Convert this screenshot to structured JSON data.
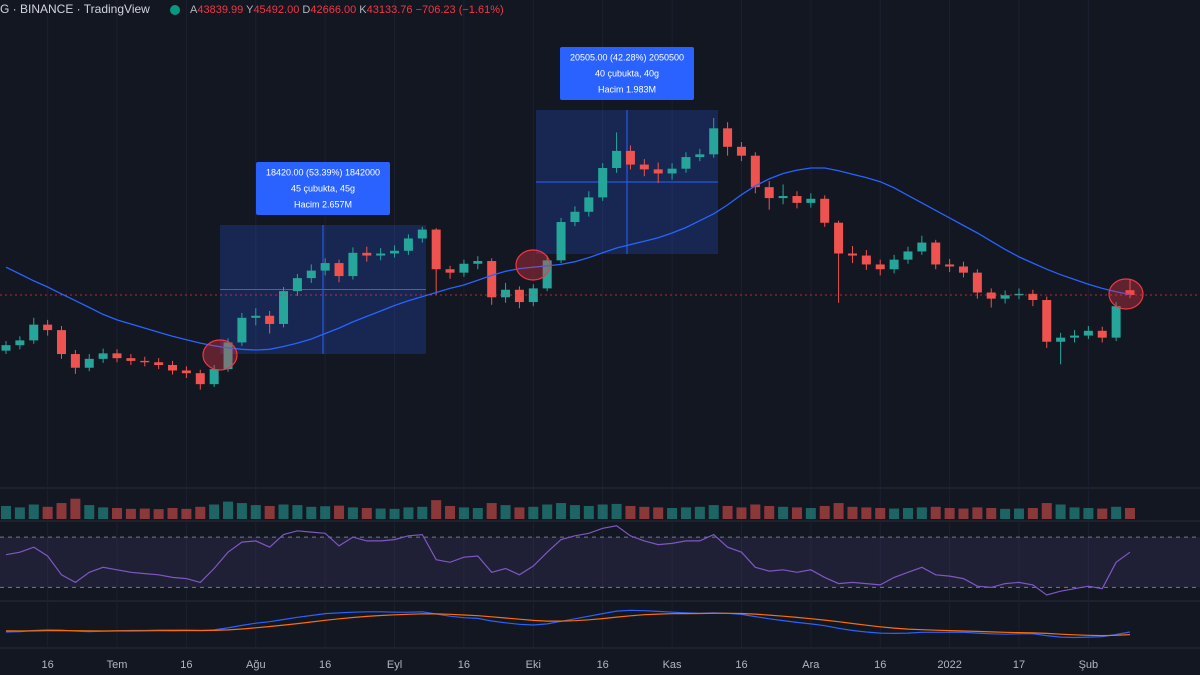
{
  "header": {
    "title": "G · BINANCE · TradingView",
    "ohlc": [
      {
        "label": "A",
        "value": "43839.99"
      },
      {
        "label": "Y",
        "value": "45492.00"
      },
      {
        "label": "D",
        "value": "42666.00"
      },
      {
        "label": "K",
        "value": "43133.76"
      }
    ],
    "change": "−706.23 (−1.61%)"
  },
  "chart_data": {
    "type": "candlestick",
    "categories": [
      null,
      null,
      null,
      "16",
      null,
      null,
      null,
      null,
      "Tem",
      null,
      null,
      null,
      null,
      "16",
      null,
      null,
      null,
      null,
      "Ağu",
      null,
      null,
      null,
      null,
      "16",
      null,
      null,
      null,
      null,
      "Eyl",
      null,
      null,
      null,
      null,
      "16",
      null,
      null,
      null,
      null,
      "Eki",
      null,
      null,
      null,
      null,
      "16",
      null,
      null,
      null,
      null,
      "Kas",
      null,
      null,
      null,
      null,
      "16",
      null,
      null,
      null,
      null,
      "Ara",
      null,
      null,
      null,
      null,
      "16",
      null,
      null,
      null,
      null,
      "2022",
      null,
      null,
      null,
      null,
      "17",
      null,
      null,
      null,
      null,
      "Şub",
      null,
      null,
      null
    ],
    "open": [
      35000,
      35800,
      36500,
      38800,
      38000,
      34500,
      32500,
      33800,
      34600,
      33900,
      33500,
      33300,
      32900,
      32100,
      31700,
      30100,
      32300,
      36200,
      39800,
      40100,
      38900,
      43700,
      45600,
      46700,
      47800,
      45900,
      49300,
      48900,
      49200,
      49600,
      51400,
      52700,
      46900,
      46400,
      47700,
      48100,
      42800,
      43900,
      42100,
      44100,
      48200,
      53800,
      55300,
      57400,
      61700,
      64200,
      62200,
      61500,
      60900,
      61600,
      63300,
      63700,
      67500,
      64800,
      63500,
      58900,
      57300,
      57600,
      56600,
      57200,
      53700,
      49200,
      48900,
      47600,
      46900,
      48300,
      49500,
      50800,
      47600,
      47300,
      46400,
      43500,
      42600,
      43100,
      43300,
      42400,
      36300,
      36900,
      37200,
      37900,
      36900,
      43839.99
    ],
    "high": [
      36400,
      37100,
      39800,
      39500,
      38600,
      35100,
      34500,
      35300,
      35200,
      34500,
      34100,
      33900,
      33500,
      32700,
      32200,
      32900,
      36800,
      40500,
      41200,
      40800,
      44300,
      46200,
      47600,
      48500,
      48300,
      50100,
      50200,
      50000,
      50400,
      52000,
      53100,
      52900,
      47400,
      48300,
      48800,
      48500,
      44900,
      44400,
      44700,
      48900,
      54400,
      56100,
      58300,
      62400,
      66900,
      65000,
      63000,
      62500,
      62400,
      64000,
      64500,
      69000,
      68400,
      65500,
      64000,
      59800,
      59300,
      58300,
      58000,
      57700,
      54000,
      50300,
      49700,
      48300,
      49000,
      50200,
      51800,
      51200,
      48400,
      48000,
      46900,
      44100,
      43800,
      44100,
      43900,
      42900,
      37600,
      38000,
      38600,
      38500,
      42100,
      45492
    ],
    "low": [
      34500,
      35200,
      36000,
      37200,
      33800,
      31600,
      32000,
      33200,
      33300,
      32900,
      32700,
      32300,
      31500,
      31000,
      29300,
      29700,
      31900,
      35700,
      38700,
      37500,
      38400,
      43000,
      44900,
      46000,
      45000,
      45400,
      48000,
      48200,
      48600,
      49000,
      50800,
      43200,
      45500,
      45800,
      46900,
      41700,
      42000,
      41200,
      41500,
      43700,
      47800,
      53200,
      54600,
      56900,
      61000,
      61500,
      60500,
      59500,
      60000,
      61000,
      62700,
      63200,
      63500,
      62700,
      58000,
      55600,
      56400,
      55800,
      55900,
      53100,
      42000,
      47800,
      46800,
      46000,
      46300,
      47700,
      49000,
      46900,
      46500,
      45700,
      42600,
      41300,
      41900,
      42500,
      41500,
      35400,
      33000,
      36200,
      36700,
      36200,
      36400,
      42666
    ],
    "close": [
      35800,
      36500,
      38800,
      38000,
      34500,
      32500,
      33800,
      34600,
      33900,
      33500,
      33300,
      32900,
      32100,
      31700,
      30100,
      32300,
      36200,
      39800,
      40100,
      38900,
      43700,
      45600,
      46700,
      47800,
      45900,
      49300,
      48900,
      49200,
      49600,
      51400,
      52700,
      46900,
      46400,
      47700,
      48100,
      42800,
      43900,
      42100,
      44100,
      48200,
      53800,
      55300,
      57400,
      61700,
      64200,
      62200,
      61500,
      60900,
      61600,
      63300,
      63700,
      67500,
      64800,
      63500,
      58900,
      57300,
      57600,
      56600,
      57200,
      53700,
      49200,
      48900,
      47600,
      46900,
      48300,
      49500,
      50800,
      47600,
      47300,
      46400,
      43500,
      42600,
      43100,
      43300,
      42400,
      36300,
      36900,
      37200,
      37900,
      36900,
      41500,
      43133.76
    ],
    "up_color": "#26a69a",
    "down_color": "#ef5350",
    "ylim": [
      17550,
      86260
    ],
    "ma": {
      "color": "#2962ff",
      "values": [
        47200,
        46200,
        45200,
        44300,
        43300,
        42300,
        41300,
        40300,
        39500,
        38900,
        38300,
        37700,
        37100,
        36600,
        36100,
        35700,
        35400,
        35200,
        35100,
        35200,
        35600,
        36100,
        36700,
        37500,
        38300,
        39200,
        40000,
        40800,
        41600,
        42300,
        42900,
        43500,
        44100,
        44600,
        45300,
        46000,
        46600,
        47000,
        47200,
        47400,
        47600,
        48000,
        48600,
        49300,
        50000,
        50500,
        51000,
        51500,
        52200,
        53000,
        54000,
        55000,
        56300,
        57800,
        59100,
        60100,
        60900,
        61400,
        61700,
        61700,
        61300,
        60800,
        60300,
        59700,
        58800,
        57700,
        56600,
        55500,
        54400,
        53300,
        52200,
        51000,
        49800,
        48700,
        47800,
        46900,
        46100,
        45400,
        44700,
        44100,
        43600,
        43200
      ]
    },
    "volume": {
      "ylim": [
        0,
        100
      ],
      "values": [
        45,
        40,
        50,
        42,
        55,
        70,
        48,
        40,
        38,
        35,
        36,
        34,
        38,
        35,
        42,
        50,
        60,
        55,
        48,
        45,
        50,
        48,
        42,
        44,
        46,
        40,
        38,
        36,
        35,
        40,
        42,
        65,
        45,
        40,
        38,
        55,
        48,
        40,
        42,
        50,
        55,
        48,
        45,
        50,
        52,
        45,
        42,
        40,
        38,
        40,
        42,
        48,
        45,
        40,
        50,
        45,
        42,
        40,
        38,
        45,
        55,
        42,
        40,
        38,
        36,
        38,
        40,
        42,
        38,
        36,
        40,
        38,
        35,
        36,
        38,
        55,
        50,
        40,
        38,
        36,
        42,
        38
      ]
    },
    "rsi": {
      "color": "#7e57c2",
      "ylim": [
        20,
        82
      ],
      "bands": [
        30,
        70
      ],
      "values": [
        56,
        58,
        62,
        55,
        40,
        34,
        42,
        46,
        44,
        42,
        41,
        40,
        38,
        37,
        34,
        45,
        58,
        66,
        67,
        62,
        72,
        75,
        74,
        73,
        63,
        70,
        67,
        67,
        68,
        71,
        72,
        52,
        50,
        54,
        55,
        42,
        45,
        40,
        47,
        58,
        68,
        71,
        73,
        77,
        79,
        71,
        67,
        64,
        65,
        67,
        67,
        72,
        62,
        58,
        46,
        43,
        44,
        42,
        44,
        38,
        33,
        34,
        33,
        32,
        38,
        42,
        46,
        40,
        39,
        37,
        31,
        30,
        33,
        34,
        32,
        24,
        27,
        29,
        31,
        29,
        50,
        58
      ]
    },
    "macd": {
      "ylim": [
        -6000,
        6000
      ],
      "color": "#2962ff",
      "signal_color": "#ff6d00",
      "values": [
        -1900,
        -1800,
        -1500,
        -1300,
        -1400,
        -1700,
        -1800,
        -1700,
        -1600,
        -1500,
        -1500,
        -1400,
        -1400,
        -1400,
        -1500,
        -1300,
        -800,
        -100,
        500,
        900,
        1500,
        2100,
        2600,
        3100,
        3300,
        3500,
        3600,
        3600,
        3500,
        3500,
        3600,
        3000,
        2400,
        2000,
        1800,
        1100,
        600,
        200,
        0,
        300,
        1000,
        1700,
        2400,
        3100,
        3800,
        4000,
        3900,
        3700,
        3500,
        3300,
        3200,
        3300,
        3200,
        2900,
        2300,
        1700,
        1200,
        700,
        300,
        -200,
        -900,
        -1500,
        -1900,
        -2200,
        -2300,
        -2200,
        -2000,
        -2000,
        -2000,
        -2000,
        -2200,
        -2400,
        -2500,
        -2400,
        -2400,
        -2900,
        -3300,
        -3400,
        -3300,
        -3200,
        -2600,
        -1900
      ],
      "signal": [
        -1600,
        -1650,
        -1620,
        -1560,
        -1530,
        -1560,
        -1610,
        -1630,
        -1620,
        -1600,
        -1580,
        -1550,
        -1530,
        -1500,
        -1500,
        -1460,
        -1330,
        -1080,
        -760,
        -420,
        -40,
        390,
        830,
        1280,
        1680,
        2040,
        2350,
        2600,
        2780,
        2920,
        3050,
        3040,
        2910,
        2730,
        2540,
        2250,
        1920,
        1570,
        1250,
        1060,
        1050,
        1180,
        1420,
        1750,
        2150,
        2520,
        2800,
        2980,
        3080,
        3120,
        3140,
        3180,
        3180,
        3130,
        2960,
        2710,
        2410,
        2070,
        1720,
        1340,
        890,
        410,
        -50,
        -480,
        -840,
        -1110,
        -1290,
        -1430,
        -1540,
        -1630,
        -1750,
        -1880,
        -2000,
        -2080,
        -2150,
        -2300,
        -2500,
        -2680,
        -2800,
        -2880,
        -2820,
        -2630
      ]
    },
    "annotations": [
      {
        "lines": [
          "18420.00 (53.39%) 1842000",
          "45 çubukta, 45g",
          "Hacim 2.657M"
        ]
      },
      {
        "lines": [
          "20505.00 (42.28%) 2050500",
          "40 çubukta, 40g",
          "Hacim 1.983M"
        ]
      }
    ]
  }
}
